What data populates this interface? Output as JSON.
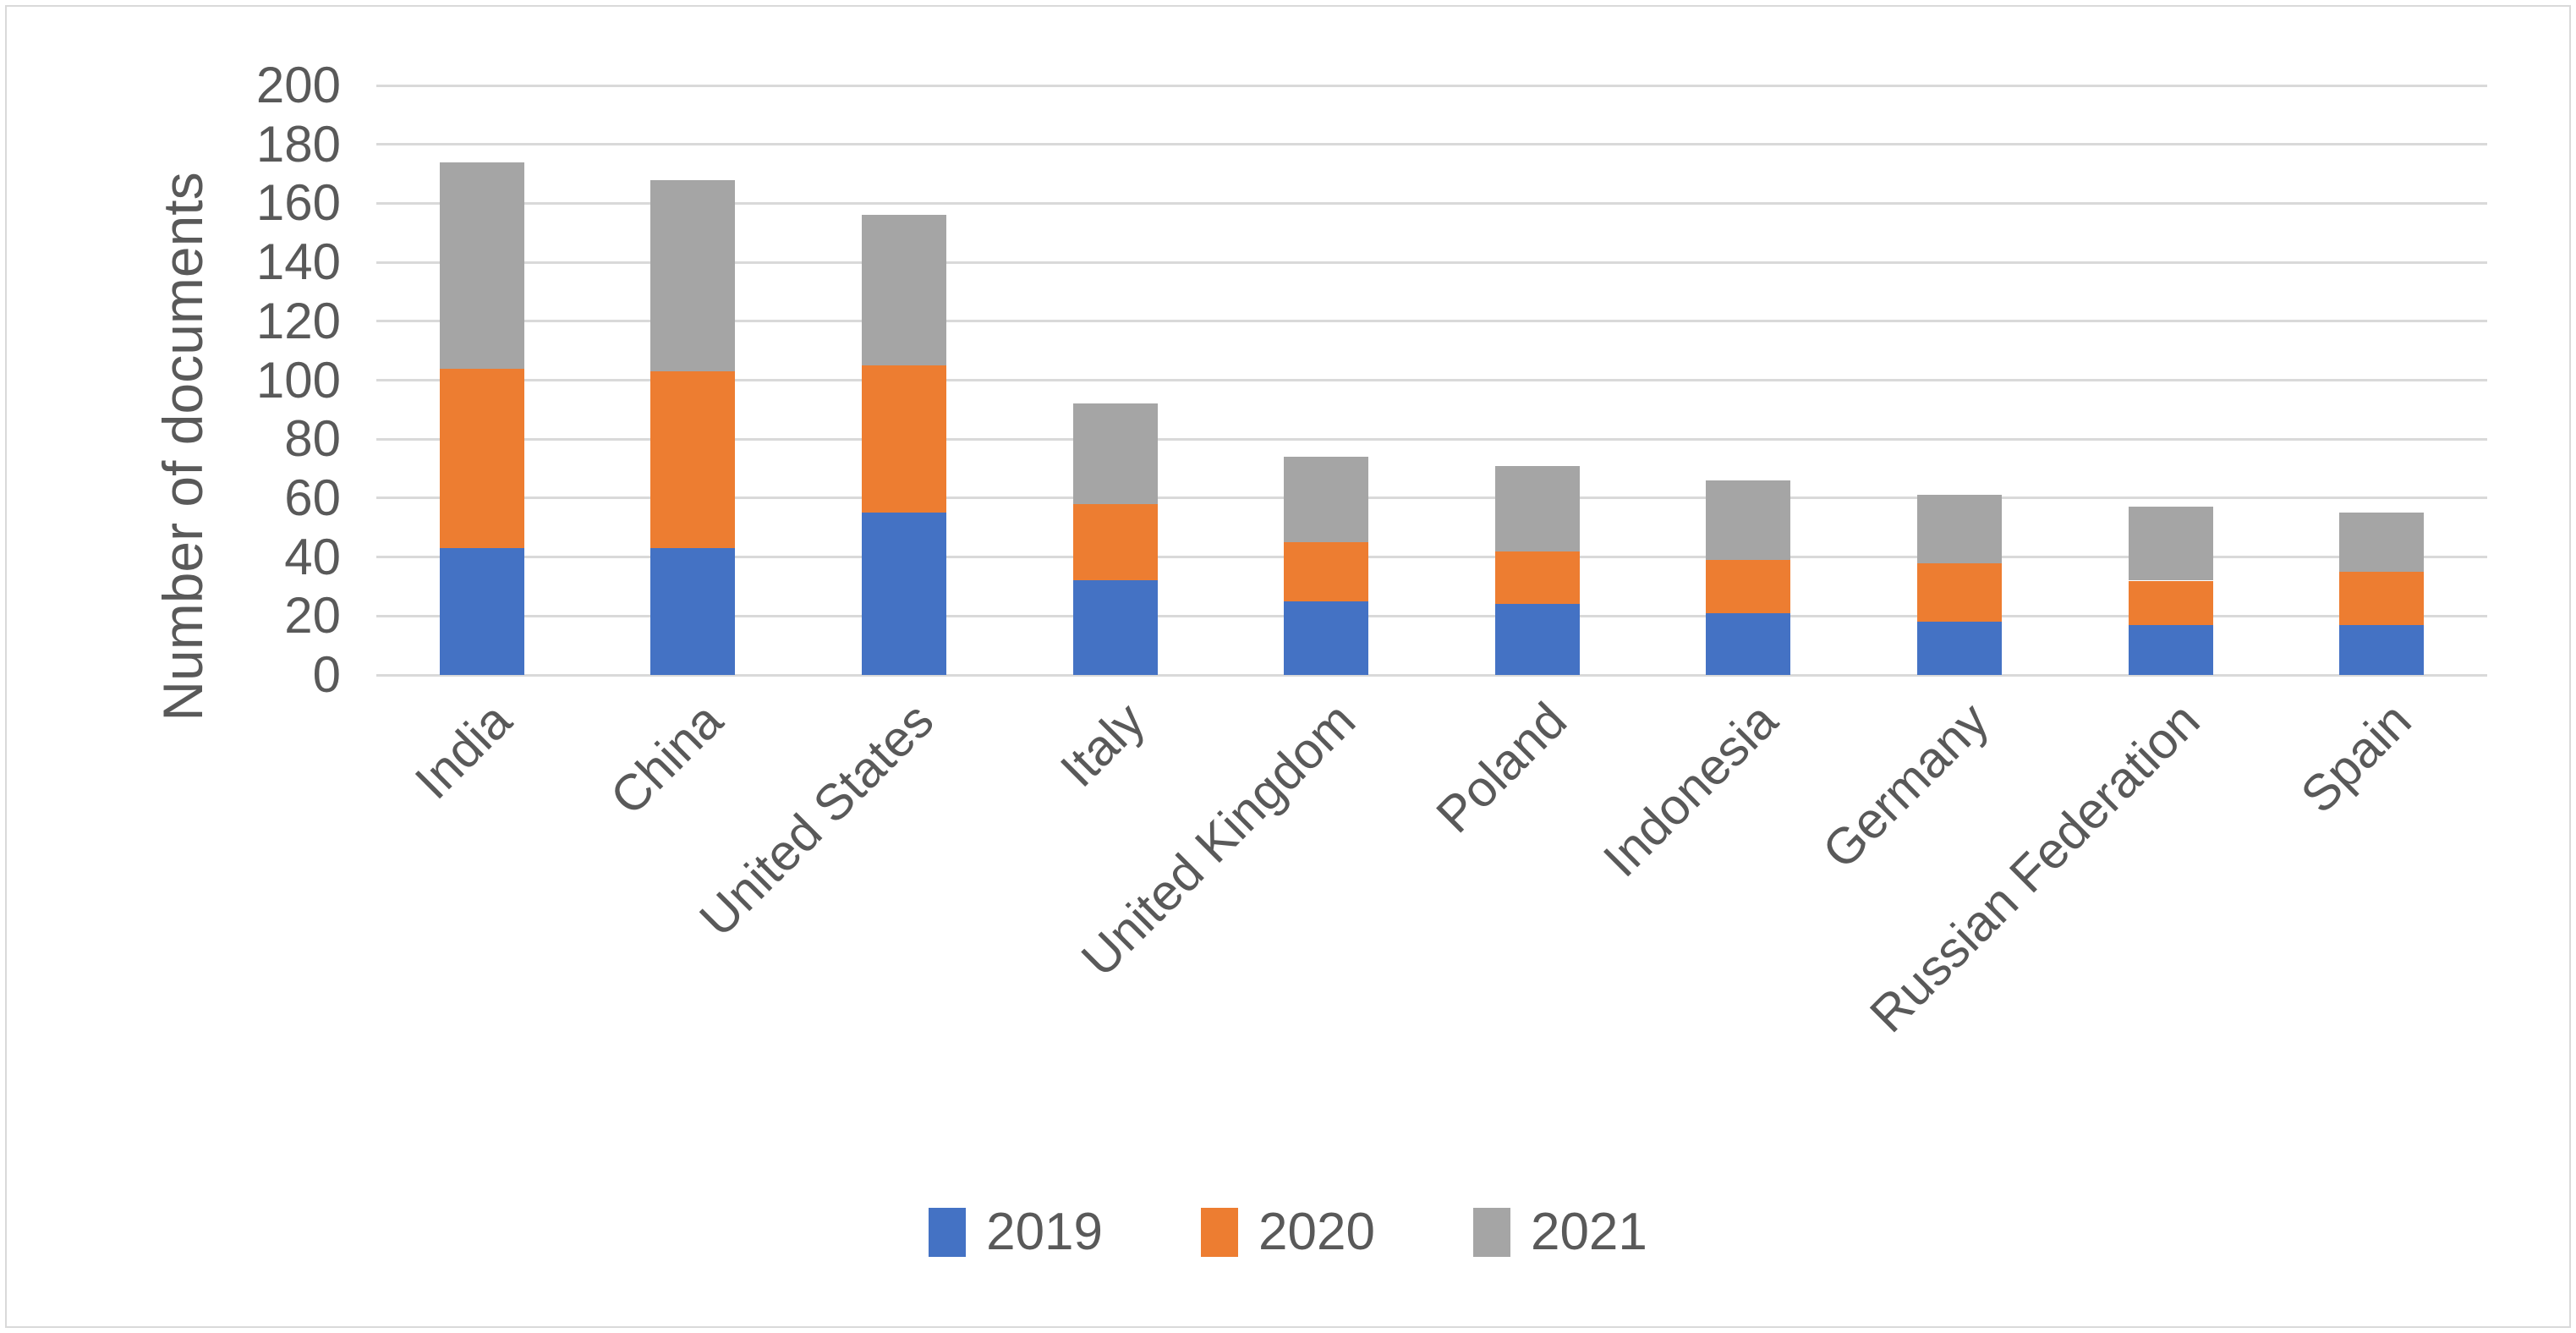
{
  "figure": {
    "background": "#ffffff",
    "border_color": "#d9d9d9"
  },
  "chart_data": {
    "type": "bar",
    "stacked": true,
    "title": "",
    "xlabel": "",
    "ylabel": "Number of documents",
    "categories": [
      "India",
      "China",
      "United States",
      "Italy",
      "United Kingdom",
      "Poland",
      "Indonesia",
      "Germany",
      "Russian Federation",
      "Spain"
    ],
    "series": [
      {
        "name": "2019",
        "color": "#4472C4",
        "values": [
          43,
          43,
          55,
          32,
          25,
          24,
          21,
          18,
          17,
          17
        ]
      },
      {
        "name": "2020",
        "color": "#ED7D31",
        "values": [
          61,
          60,
          50,
          26,
          20,
          18,
          18,
          20,
          15,
          18
        ]
      },
      {
        "name": "2021",
        "color": "#A5A5A5",
        "values": [
          70,
          65,
          51,
          34,
          29,
          29,
          27,
          23,
          25,
          20
        ]
      }
    ],
    "stack_totals": [
      174,
      168,
      156,
      92,
      74,
      71,
      66,
      61,
      57,
      55
    ],
    "ylim": [
      0,
      200
    ],
    "ytick_step": 20,
    "ytick_labels": [
      "0",
      "20",
      "40",
      "60",
      "80",
      "100",
      "120",
      "140",
      "160",
      "180",
      "200"
    ],
    "grid": true,
    "gridline_color": "#d9d9d9",
    "text_color": "#595959",
    "legend_position": "bottom",
    "category_label_rotation_deg": 45
  }
}
